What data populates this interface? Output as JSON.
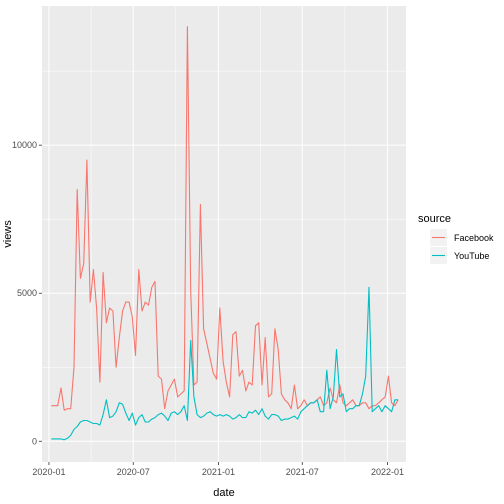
{
  "chart_data": {
    "type": "line",
    "title": "",
    "xlabel": "date",
    "ylabel": "views",
    "x_tick_labels": [
      "2020-01",
      "2020-07",
      "2021-01",
      "2021-07",
      "2022-01"
    ],
    "x_ticks": [
      "2020-01-01",
      "2020-07-01",
      "2021-01-01",
      "2021-07-01",
      "2022-01-01"
    ],
    "xlim": [
      "2019-12-17",
      "2022-02-10"
    ],
    "y_tick_labels": [
      "0",
      "5000",
      "10000"
    ],
    "y_ticks": [
      0,
      5000,
      10000
    ],
    "ylim": [
      -700,
      14700
    ],
    "grid": true,
    "legend": {
      "title": "source",
      "position": "right"
    },
    "series": [
      {
        "name": "Facebook",
        "color": "#F8766D",
        "x": [
          "2020-01-06",
          "2020-01-13",
          "2020-01-20",
          "2020-01-27",
          "2020-02-03",
          "2020-02-10",
          "2020-02-17",
          "2020-02-24",
          "2020-03-02",
          "2020-03-09",
          "2020-03-16",
          "2020-03-23",
          "2020-03-30",
          "2020-04-06",
          "2020-04-13",
          "2020-04-20",
          "2020-04-27",
          "2020-05-04",
          "2020-05-11",
          "2020-05-18",
          "2020-05-25",
          "2020-06-01",
          "2020-06-08",
          "2020-06-15",
          "2020-06-22",
          "2020-06-29",
          "2020-07-06",
          "2020-07-13",
          "2020-07-20",
          "2020-07-27",
          "2020-08-03",
          "2020-08-10",
          "2020-08-17",
          "2020-08-24",
          "2020-08-31",
          "2020-09-07",
          "2020-09-14",
          "2020-09-21",
          "2020-09-28",
          "2020-10-05",
          "2020-10-12",
          "2020-10-19",
          "2020-10-26",
          "2020-11-02",
          "2020-11-09",
          "2020-11-16",
          "2020-11-23",
          "2020-11-30",
          "2020-12-07",
          "2020-12-14",
          "2020-12-21",
          "2020-12-28",
          "2021-01-04",
          "2021-01-11",
          "2021-01-18",
          "2021-01-25",
          "2021-02-01",
          "2021-02-08",
          "2021-02-15",
          "2021-02-22",
          "2021-03-01",
          "2021-03-08",
          "2021-03-15",
          "2021-03-22",
          "2021-03-29",
          "2021-04-05",
          "2021-04-12",
          "2021-04-19",
          "2021-04-26",
          "2021-05-03",
          "2021-05-10",
          "2021-05-17",
          "2021-05-24",
          "2021-05-31",
          "2021-06-07",
          "2021-06-14",
          "2021-06-21",
          "2021-06-28",
          "2021-07-05",
          "2021-07-12",
          "2021-07-19",
          "2021-07-26",
          "2021-08-02",
          "2021-08-09",
          "2021-08-16",
          "2021-08-23",
          "2021-08-30",
          "2021-09-06",
          "2021-09-13",
          "2021-09-20",
          "2021-09-27",
          "2021-10-04",
          "2021-10-11",
          "2021-10-18",
          "2021-10-25",
          "2021-11-01",
          "2021-11-08",
          "2021-11-15",
          "2021-11-22",
          "2021-11-29",
          "2021-12-06",
          "2021-12-13",
          "2021-12-20",
          "2021-12-27",
          "2022-01-03",
          "2022-01-10",
          "2022-01-17",
          "2022-01-24"
        ],
        "y": [
          1200,
          1200,
          1200,
          1800,
          1050,
          1100,
          1100,
          2500,
          8500,
          5500,
          6000,
          9500,
          4700,
          5800,
          4500,
          2000,
          5700,
          4000,
          4500,
          4400,
          2500,
          3500,
          4400,
          4700,
          4700,
          4200,
          2900,
          5800,
          4400,
          4700,
          4600,
          5200,
          5400,
          2200,
          2100,
          1100,
          1700,
          1900,
          2100,
          1500,
          1600,
          1700,
          14000,
          5100,
          1900,
          2000,
          8000,
          3800,
          3300,
          2800,
          2300,
          2100,
          4500,
          2700,
          2000,
          1500,
          3600,
          3700,
          2200,
          2400,
          1700,
          2000,
          1900,
          3900,
          4000,
          1900,
          3500,
          1500,
          1600,
          3800,
          3100,
          1600,
          1400,
          1300,
          1100,
          1900,
          1100,
          1200,
          1400,
          1200,
          1300,
          1300,
          1400,
          1500,
          1200,
          1300,
          1800,
          1400,
          1300,
          1900,
          1300,
          1200,
          1300,
          1400,
          1200,
          1200,
          1300,
          1300,
          1100,
          1200,
          1200,
          1300,
          1400,
          1500,
          2200,
          1300,
          1200,
          1400
        ]
      },
      {
        "name": "YouTube",
        "color": "#00BFC4",
        "x": [
          "2020-01-06",
          "2020-01-13",
          "2020-01-20",
          "2020-01-27",
          "2020-02-03",
          "2020-02-10",
          "2020-02-17",
          "2020-02-24",
          "2020-03-02",
          "2020-03-09",
          "2020-03-16",
          "2020-03-23",
          "2020-03-30",
          "2020-04-06",
          "2020-04-13",
          "2020-04-20",
          "2020-04-27",
          "2020-05-04",
          "2020-05-11",
          "2020-05-18",
          "2020-05-25",
          "2020-06-01",
          "2020-06-08",
          "2020-06-15",
          "2020-06-22",
          "2020-06-29",
          "2020-07-06",
          "2020-07-13",
          "2020-07-20",
          "2020-07-27",
          "2020-08-03",
          "2020-08-10",
          "2020-08-17",
          "2020-08-24",
          "2020-08-31",
          "2020-09-07",
          "2020-09-14",
          "2020-09-21",
          "2020-09-28",
          "2020-10-05",
          "2020-10-12",
          "2020-10-19",
          "2020-10-26",
          "2020-11-02",
          "2020-11-09",
          "2020-11-16",
          "2020-11-23",
          "2020-11-30",
          "2020-12-07",
          "2020-12-14",
          "2020-12-21",
          "2020-12-28",
          "2021-01-04",
          "2021-01-11",
          "2021-01-18",
          "2021-01-25",
          "2021-02-01",
          "2021-02-08",
          "2021-02-15",
          "2021-02-22",
          "2021-03-01",
          "2021-03-08",
          "2021-03-15",
          "2021-03-22",
          "2021-03-29",
          "2021-04-05",
          "2021-04-12",
          "2021-04-19",
          "2021-04-26",
          "2021-05-03",
          "2021-05-10",
          "2021-05-17",
          "2021-05-24",
          "2021-05-31",
          "2021-06-07",
          "2021-06-14",
          "2021-06-21",
          "2021-06-28",
          "2021-07-05",
          "2021-07-12",
          "2021-07-19",
          "2021-07-26",
          "2021-08-02",
          "2021-08-09",
          "2021-08-16",
          "2021-08-23",
          "2021-08-30",
          "2021-09-06",
          "2021-09-13",
          "2021-09-20",
          "2021-09-27",
          "2021-10-04",
          "2021-10-11",
          "2021-10-18",
          "2021-10-25",
          "2021-11-01",
          "2021-11-08",
          "2021-11-15",
          "2021-11-22",
          "2021-11-29",
          "2021-12-06",
          "2021-12-13",
          "2021-12-20",
          "2021-12-27",
          "2022-01-03",
          "2022-01-10",
          "2022-01-17",
          "2022-01-24"
        ],
        "y": [
          80,
          80,
          80,
          80,
          50,
          100,
          200,
          400,
          500,
          650,
          700,
          700,
          650,
          600,
          600,
          550,
          900,
          1400,
          800,
          850,
          1000,
          1300,
          1250,
          950,
          700,
          950,
          550,
          800,
          900,
          650,
          650,
          750,
          800,
          900,
          950,
          850,
          700,
          950,
          1000,
          900,
          1000,
          1200,
          700,
          3400,
          1500,
          900,
          800,
          850,
          950,
          1000,
          900,
          850,
          900,
          850,
          900,
          850,
          750,
          800,
          900,
          800,
          800,
          1000,
          950,
          1050,
          900,
          1100,
          850,
          750,
          900,
          900,
          850,
          700,
          750,
          750,
          800,
          850,
          750,
          1000,
          1100,
          1200,
          1300,
          1300,
          1400,
          1000,
          1000,
          2400,
          1100,
          1500,
          3100,
          1500,
          1600,
          1000,
          1100,
          1100,
          1200,
          1200,
          1600,
          2200,
          5200,
          1000,
          1100,
          1200,
          1000,
          1200,
          1100,
          1000,
          1400,
          1400
        ]
      }
    ]
  }
}
